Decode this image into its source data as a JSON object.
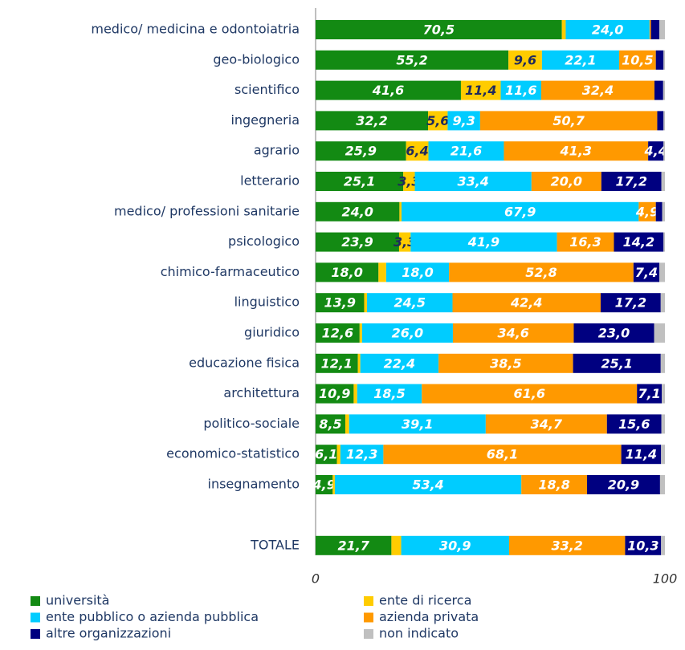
{
  "chart_data": {
    "type": "stacked-bar-horizontal",
    "categories": [
      "medico/ medicina e odontoiatria",
      "geo-biologico",
      "scientifico",
      "ingegneria",
      "agrario",
      "letterario",
      "medico/ professioni sanitarie",
      "psicologico",
      "chimico-farmaceutico",
      "linguistico",
      "giuridico",
      "educazione fisica",
      "architettura",
      "politico-sociale",
      "economico-statistico",
      "insegnamento",
      "TOTALE"
    ],
    "series": [
      {
        "name": "università",
        "color": "#138a13",
        "values": [
          70.5,
          55.2,
          41.6,
          32.2,
          25.9,
          25.1,
          24.0,
          23.9,
          18.0,
          13.9,
          12.6,
          12.1,
          10.9,
          8.5,
          6.1,
          4.9,
          21.7
        ],
        "value_labels": [
          "70,5",
          "55,2",
          "41,6",
          "32,2",
          "25,9",
          "25,1",
          "24,0",
          "23,9",
          "18,0",
          "13,9",
          "12,6",
          "12,1",
          "10,9",
          "8,5",
          "6,1",
          "4,9",
          "21,7"
        ]
      },
      {
        "name": "ente di ricerca",
        "color": "#ffcc00",
        "values": [
          1.1,
          9.6,
          11.4,
          5.6,
          6.4,
          3.3,
          0.6,
          3.3,
          2.2,
          0.8,
          0.7,
          0.7,
          1.0,
          1.1,
          1.0,
          0.6,
          2.8
        ],
        "value_labels": [
          null,
          "9,6",
          "11,4",
          "5,6",
          "6,4",
          "3,3",
          null,
          "3,3",
          null,
          null,
          null,
          null,
          null,
          null,
          null,
          null,
          null
        ]
      },
      {
        "name": "ente pubblico o azienda pubblica",
        "color": "#00ccff",
        "values": [
          24.0,
          22.1,
          11.6,
          9.3,
          21.6,
          33.4,
          67.9,
          41.9,
          18.0,
          24.5,
          26.0,
          22.4,
          18.5,
          39.1,
          12.3,
          53.4,
          30.9
        ],
        "value_labels": [
          "24,0",
          "22,1",
          "11,6",
          "9,3",
          "21,6",
          "33,4",
          "67,9",
          "41,9",
          "18,0",
          "24,5",
          "26,0",
          "22,4",
          "18,5",
          "39,1",
          "12,3",
          "53,4",
          "30,9"
        ]
      },
      {
        "name": "azienda privata",
        "color": "#ff9900",
        "values": [
          0.4,
          10.5,
          32.4,
          50.7,
          41.3,
          20.0,
          4.9,
          16.3,
          52.8,
          42.4,
          34.6,
          38.5,
          61.6,
          34.7,
          68.1,
          18.8,
          33.2
        ],
        "value_labels": [
          null,
          "10,5",
          "32,4",
          "50,7",
          "41,3",
          "20,0",
          "4,9",
          "16,3",
          "52,8",
          "42,4",
          "34,6",
          "38,5",
          "61,6",
          "34,7",
          "68,1",
          "18,8",
          "33,2"
        ]
      },
      {
        "name": "altre organizzazioni",
        "color": "#000080",
        "values": [
          2.4,
          2.2,
          2.5,
          1.8,
          4.4,
          17.2,
          1.8,
          14.2,
          7.4,
          17.2,
          23.0,
          25.1,
          7.1,
          15.6,
          11.4,
          20.9,
          10.3
        ],
        "value_labels": [
          null,
          null,
          null,
          null,
          "4,4",
          "17,2",
          null,
          "14,2",
          "7,4",
          "17,2",
          "23,0",
          "25,1",
          "7,1",
          "15,6",
          "11,4",
          "20,9",
          "10,3"
        ]
      },
      {
        "name": "non indicato",
        "color": "#c0c0c0",
        "values": [
          1.6,
          0.4,
          0.5,
          0.4,
          0.4,
          1.0,
          0.8,
          0.4,
          1.6,
          1.2,
          3.1,
          1.2,
          0.9,
          1.0,
          1.1,
          1.4,
          1.1
        ],
        "value_labels": [
          null,
          null,
          null,
          null,
          null,
          null,
          null,
          null,
          null,
          null,
          null,
          null,
          null,
          null,
          null,
          null,
          null
        ]
      }
    ],
    "xlim": [
      0,
      100
    ],
    "xticks": [
      0,
      100
    ]
  }
}
